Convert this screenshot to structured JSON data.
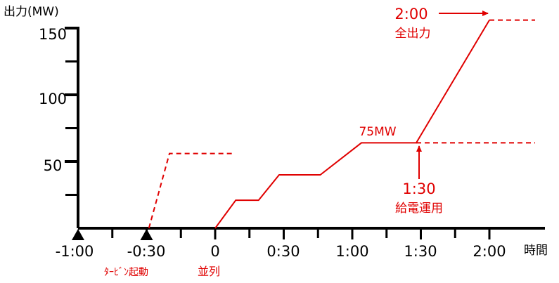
{
  "chart_data": {
    "type": "line",
    "ylabel": "出力(MW)",
    "xlabel": "時間",
    "ylim": [
      0,
      150
    ],
    "yticks": [
      "150",
      "100",
      "50"
    ],
    "yticks_values": [
      150,
      100,
      50
    ],
    "xticks": [
      "-1:00",
      "-0:30",
      "0",
      "0:30",
      "1:00",
      "1:30",
      "2:00"
    ],
    "xticks_values": [
      -60,
      -30,
      0,
      30,
      60,
      90,
      120
    ],
    "series": [
      {
        "style": "solid",
        "x": [
          0,
          9,
          19,
          28,
          46,
          64,
          88,
          120
        ],
        "y": [
          0,
          21,
          21,
          40,
          40,
          64,
          64,
          156
        ]
      },
      {
        "style": "dashed",
        "x": [
          -29,
          -20,
          8
        ],
        "y": [
          0,
          56,
          56
        ]
      }
    ],
    "reference_lines": [
      {
        "style": "dashed",
        "x": [
          88,
          140
        ],
        "y": [
          64,
          64
        ]
      },
      {
        "style": "dashed",
        "x": [
          120,
          140
        ],
        "y": [
          156,
          156
        ]
      }
    ],
    "markers": [
      {
        "x": -60,
        "shape": "triangle"
      },
      {
        "x": -30,
        "shape": "triangle"
      }
    ],
    "annotations": {
      "full_time": "2:00",
      "full_label": "全出力",
      "mw75": "75MW",
      "dispatch_time": "1:30",
      "dispatch_label": "給電運用",
      "turbine_start": "ﾀｰﾋﾞﾝ起動",
      "parallel": "並列"
    },
    "colors": {
      "axis": "#000000",
      "series": "#e00000",
      "annotation": "#e00000"
    }
  }
}
